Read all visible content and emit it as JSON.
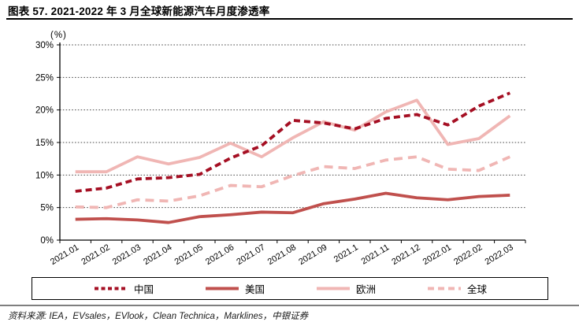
{
  "title": "图表 57. 2021-2022 年 3 月全球新能源汽车月度渗透率",
  "source_note": "资料来源: IEA，EVsales，EVlook，Clean Technica，Marklines，中银证券",
  "chart_data": {
    "type": "line",
    "unit_label": "(%)",
    "categories": [
      "2021.01",
      "2021.02",
      "2021.03",
      "2021.04",
      "2021.05",
      "2021.06",
      "2021.07",
      "2021.08",
      "2021.09",
      "2021.1",
      "2021.11",
      "2021.12",
      "2022.01",
      "2022.02",
      "2022.03"
    ],
    "series": [
      {
        "key": "china",
        "name": "中国",
        "color": "#a50f23",
        "dash": "8 5",
        "legend_dash": "5 3.5",
        "values": [
          7.5,
          8.0,
          9.4,
          9.6,
          10.1,
          12.6,
          14.5,
          18.4,
          18.0,
          17.1,
          18.7,
          19.3,
          17.7,
          20.6,
          22.6
        ]
      },
      {
        "key": "us",
        "name": "美国",
        "color": "#c0504d",
        "dash": null,
        "legend_dash": null,
        "values": [
          3.2,
          3.3,
          3.1,
          2.7,
          3.6,
          3.9,
          4.3,
          4.2,
          5.6,
          6.3,
          7.2,
          6.5,
          6.2,
          6.7,
          6.9
        ]
      },
      {
        "key": "europe",
        "name": "欧洲",
        "color": "#f0b6b4",
        "dash": null,
        "legend_dash": null,
        "values": [
          10.5,
          10.5,
          12.8,
          11.7,
          12.7,
          14.9,
          12.8,
          15.7,
          18.2,
          16.9,
          19.7,
          21.5,
          14.7,
          15.6,
          19.1
        ]
      },
      {
        "key": "global",
        "name": "全球",
        "color": "#f0b6b4",
        "dash": "11 7",
        "legend_dash": "8 5",
        "values": [
          5.1,
          5.0,
          6.2,
          6.0,
          6.8,
          8.4,
          8.2,
          9.9,
          11.3,
          11.0,
          12.3,
          12.8,
          10.9,
          10.7,
          12.8
        ]
      }
    ],
    "ylim": [
      0,
      30
    ],
    "ytick_step": 5,
    "ytick_labels": [
      "0%",
      "5%",
      "10%",
      "15%",
      "20%",
      "25%",
      "30%"
    ],
    "grid": "horizontal dotted",
    "legend_position": "bottom"
  }
}
